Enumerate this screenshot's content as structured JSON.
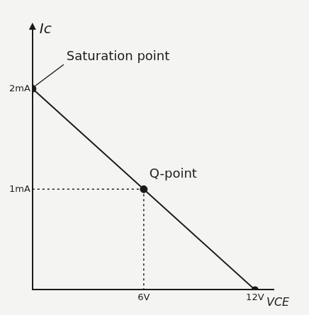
{
  "chart_data": {
    "type": "line",
    "x_label": "VCE",
    "y_label": "Ic",
    "x": [
      0,
      12
    ],
    "values": [
      2,
      0
    ],
    "color": "#1a1a1a",
    "xlim": [
      0,
      13
    ],
    "ylim": [
      0,
      2.6
    ],
    "xticks": [
      {
        "value": 6,
        "label": "6V"
      },
      {
        "value": 12,
        "label": "12V"
      }
    ],
    "yticks": [
      {
        "value": 1,
        "label": "1mA"
      },
      {
        "value": 2,
        "label": "2mA"
      }
    ],
    "annotations": [
      {
        "text": "Saturation point",
        "x": 0,
        "y": 2
      },
      {
        "text": "Q-point",
        "x": 6,
        "y": 1
      }
    ],
    "grid": false,
    "tick_labels": true
  }
}
